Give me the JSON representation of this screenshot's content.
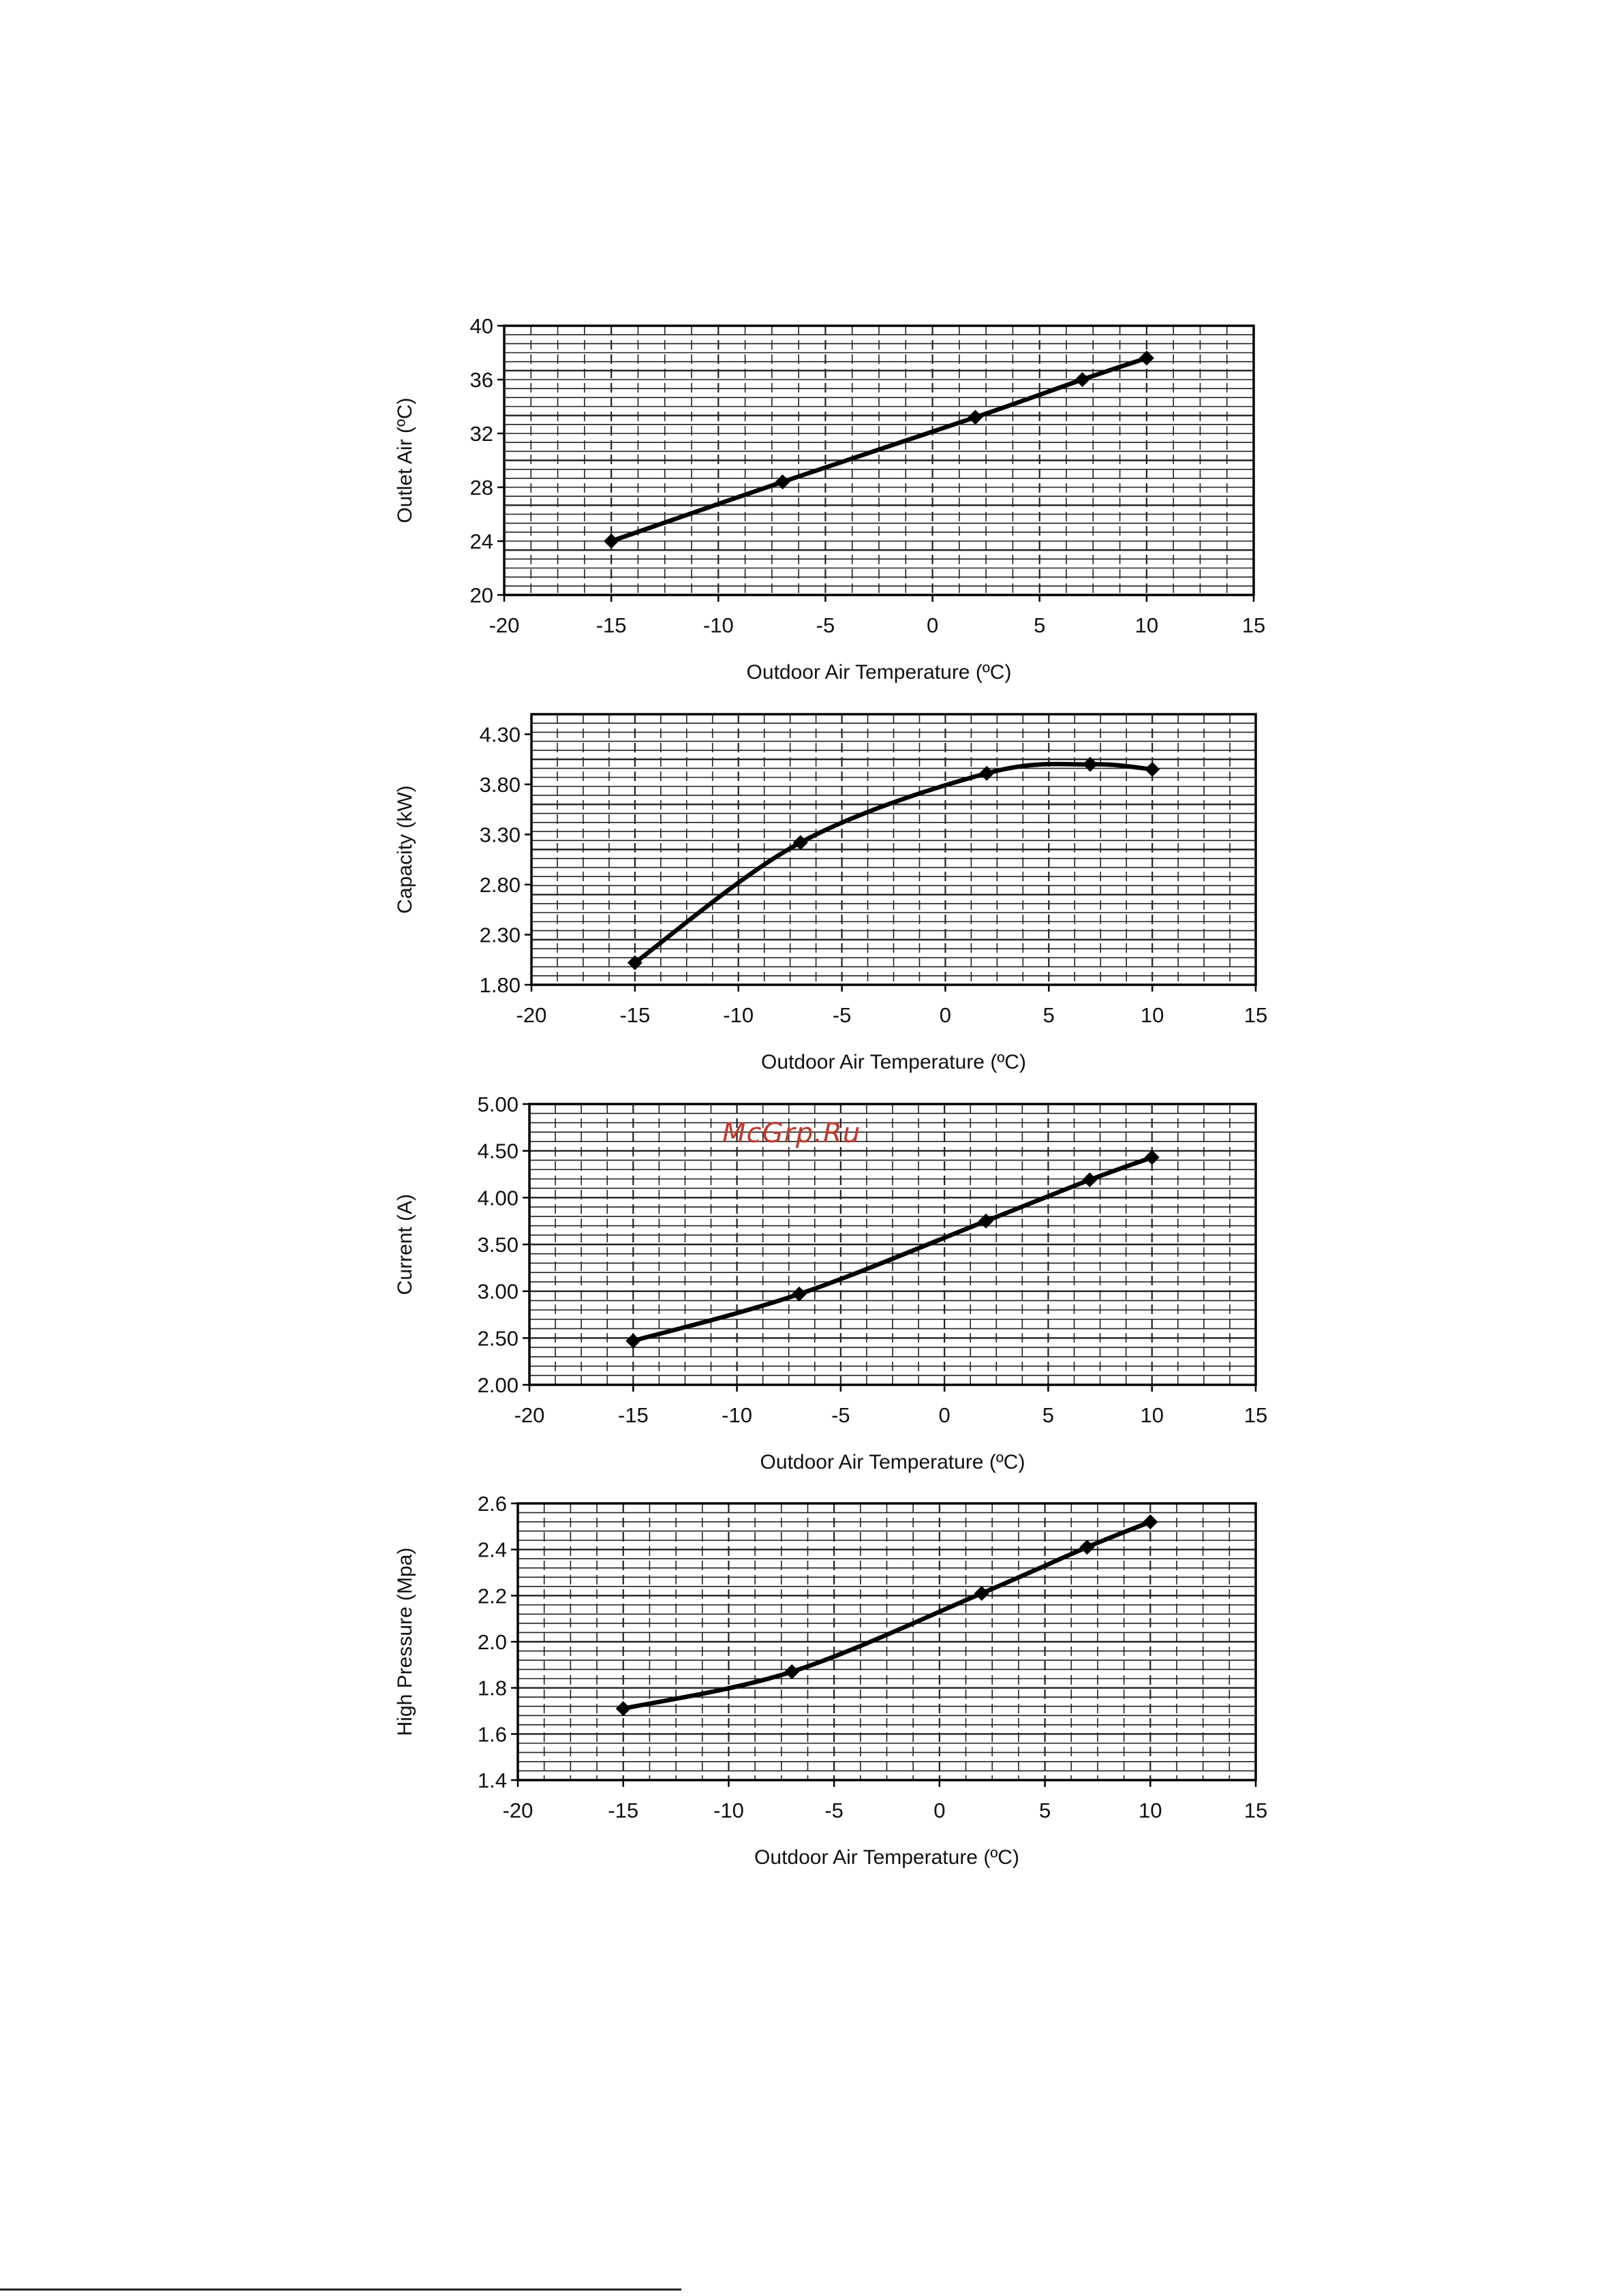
{
  "watermark": "McGrp.Ru",
  "colors": {
    "line": "#000000",
    "grid": "#222222",
    "watermark": "#c0392b"
  },
  "chart_data": [
    {
      "type": "line",
      "xlabel": "Outdoor Air Temperature (ºC)",
      "ylabel": "Outlet Air (ºC)",
      "xlim": [
        -20,
        15
      ],
      "ylim": [
        20,
        40
      ],
      "xticks": [
        -20,
        -15,
        -10,
        -5,
        0,
        5,
        10,
        15
      ],
      "yticks": [
        20,
        24,
        28,
        32,
        36,
        40
      ],
      "ytick_labels": [
        "20",
        "24",
        "28",
        "32",
        "36",
        "40"
      ],
      "grid": true,
      "x": [
        -15,
        -7,
        2,
        7,
        10
      ],
      "y": [
        24.0,
        28.4,
        33.2,
        36.0,
        37.6
      ]
    },
    {
      "type": "line",
      "xlabel": "Outdoor Air Temperature (ºC)",
      "ylabel": "Capacity (kW)",
      "xlim": [
        -20,
        15
      ],
      "ylim": [
        1.8,
        4.5
      ],
      "xticks": [
        -20,
        -15,
        -10,
        -5,
        0,
        5,
        10,
        15
      ],
      "yticks": [
        1.8,
        2.3,
        2.8,
        3.3,
        3.8,
        4.3
      ],
      "ytick_labels": [
        "1.80",
        "2.30",
        "2.80",
        "3.30",
        "3.80",
        "4.30"
      ],
      "grid": true,
      "x": [
        -15,
        -7,
        2,
        7,
        10
      ],
      "y": [
        2.02,
        3.22,
        3.91,
        4.0,
        3.95
      ]
    },
    {
      "type": "line",
      "xlabel": "Outdoor Air Temperature (ºC)",
      "ylabel": "Current (A)",
      "xlim": [
        -20,
        15
      ],
      "ylim": [
        2.0,
        5.0
      ],
      "xticks": [
        -20,
        -15,
        -10,
        -5,
        0,
        5,
        10,
        15
      ],
      "yticks": [
        2.0,
        2.5,
        3.0,
        3.5,
        4.0,
        4.5,
        5.0
      ],
      "ytick_labels": [
        "2.00",
        "2.50",
        "3.00",
        "3.50",
        "4.00",
        "4.50",
        "5.00"
      ],
      "grid": true,
      "x": [
        -15,
        -7,
        2,
        7,
        10
      ],
      "y": [
        2.47,
        2.97,
        3.75,
        4.19,
        4.43
      ]
    },
    {
      "type": "line",
      "xlabel": "Outdoor Air Temperature (ºC)",
      "ylabel": "High Pressure (Mpa)",
      "xlim": [
        -20,
        15
      ],
      "ylim": [
        1.4,
        2.6
      ],
      "xticks": [
        -20,
        -15,
        -10,
        -5,
        0,
        5,
        10,
        15
      ],
      "yticks": [
        1.4,
        1.6,
        1.8,
        2.0,
        2.2,
        2.4,
        2.6
      ],
      "ytick_labels": [
        "1.4",
        "1.6",
        "1.8",
        "2.0",
        "2.2",
        "2.4",
        "2.6"
      ],
      "grid": true,
      "x": [
        -15,
        -7,
        2,
        7,
        10
      ],
      "y": [
        1.71,
        1.87,
        2.21,
        2.41,
        2.52
      ]
    }
  ]
}
